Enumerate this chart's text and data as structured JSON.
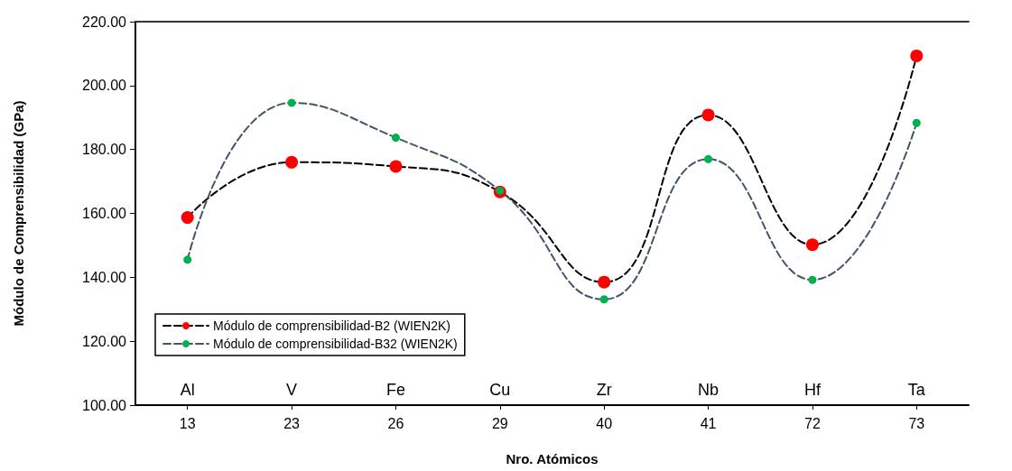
{
  "chart_data": {
    "type": "line",
    "xlabel": "Nro. Atómicos",
    "ylabel": "Módulo de Comprensibilidad (GPa)",
    "categories": [
      "13",
      "23",
      "26",
      "29",
      "40",
      "41",
      "72",
      "73"
    ],
    "series": [
      {
        "name": "Módulo de comprensibilidad-B2 (WIEN2K)",
        "color": "#000000",
        "colors": [
          "#ff0000",
          "#ff0000",
          "#ff0000",
          "#ff0000",
          "#ff0000",
          "#ff0000",
          "#ff0000",
          "#ff0000"
        ],
        "values": [
          158.7,
          176.0,
          174.7,
          166.7,
          138.5,
          190.8,
          150.2,
          209.3
        ]
      },
      {
        "name": "Módulo de comprensibilidad-B32 (WIEN2K)",
        "color": "#44546a",
        "colors": [
          "#00b050",
          "#00b050",
          "#00b050",
          "#00b050",
          "#00b050",
          "#00b050",
          "#00b050",
          "#00b050"
        ],
        "values": [
          145.5,
          194.6,
          183.7,
          167.1,
          133.1,
          177.0,
          139.2,
          188.3
        ]
      }
    ],
    "ylim": [
      100,
      220
    ],
    "yticks": [
      {
        "value": 100,
        "label": "100.00"
      },
      {
        "value": 120,
        "label": "120.00"
      },
      {
        "value": 140,
        "label": "140.00"
      },
      {
        "value": 160,
        "label": "160.00"
      },
      {
        "value": 180,
        "label": "180.00"
      },
      {
        "value": 200,
        "label": "200.00"
      },
      {
        "value": 220,
        "label": "220.00"
      }
    ],
    "annotations": [
      "Al",
      "V",
      "Fe",
      "Cu",
      "Zr",
      "Nb",
      "Hf",
      "Ta"
    ],
    "grid": false,
    "legend": "bottom left",
    "marker": "circle",
    "line_style": "dashed"
  }
}
